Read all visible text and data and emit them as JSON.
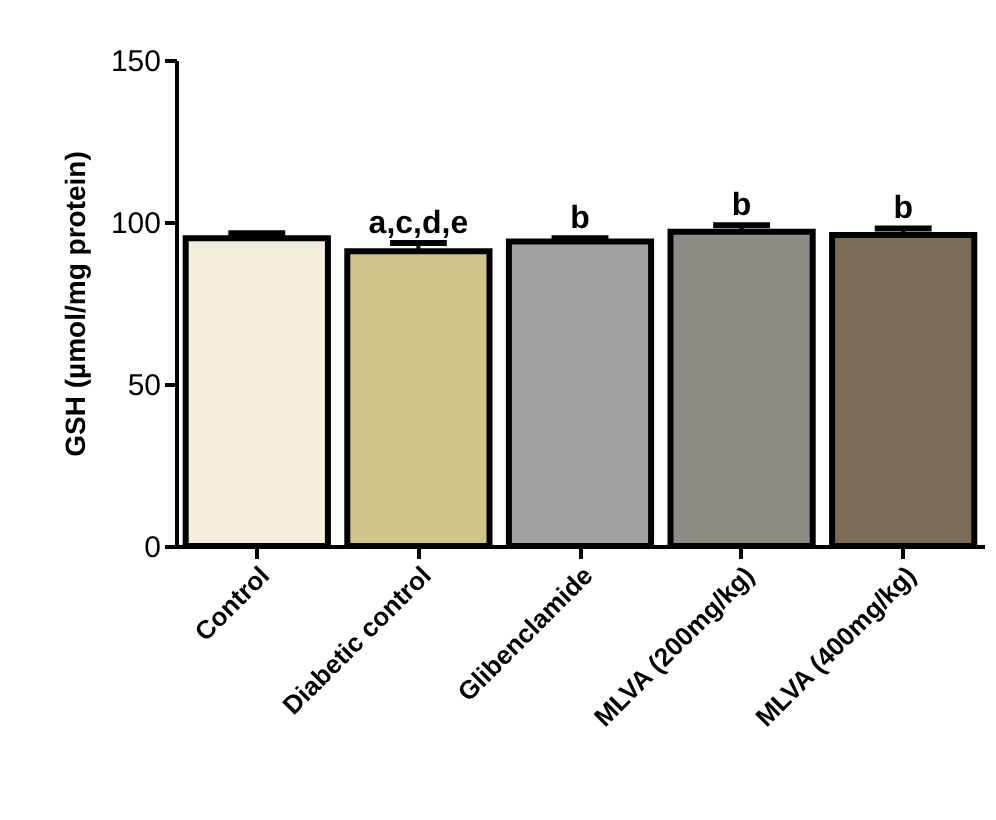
{
  "chart_data": {
    "type": "bar",
    "ylabel": "GSH (µmol/mg protein)",
    "categories": [
      "Control",
      "Diabetic control",
      "Glibenclamide",
      "MLVA (200mg/kg)",
      "MLVA (400mg/kg)"
    ],
    "values": [
      95,
      91,
      94,
      97,
      96
    ],
    "errors": [
      1.5,
      2.5,
      1,
      2,
      2
    ],
    "colors": [
      "#f3efdc",
      "#d2c48c",
      "#a2a2a2",
      "#8e8a84",
      "#7a6c55"
    ],
    "ylim": [
      0,
      150
    ],
    "yticks": [
      0,
      50,
      100,
      150
    ],
    "grid": false,
    "annotations": [
      {
        "text": "a,c,d,e",
        "x": "Diabetic control",
        "y": 93.5
      },
      {
        "text": "b",
        "x": "Glibenclamide",
        "y": 95
      },
      {
        "text": "b",
        "x": "MLVA (200mg/kg)",
        "y": 99
      },
      {
        "text": "b",
        "x": "MLVA (400mg/kg)",
        "y": 98
      }
    ]
  }
}
